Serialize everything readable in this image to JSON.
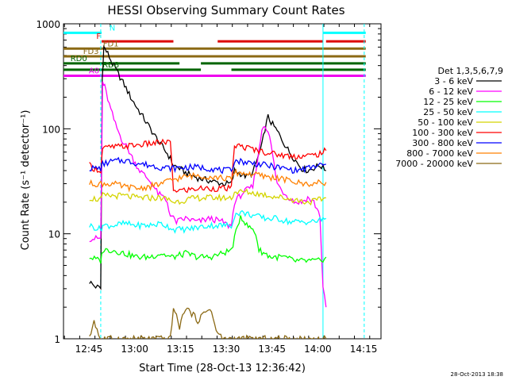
{
  "chart_data": {
    "type": "line",
    "title": "HESSI Observing Summary Count Rates",
    "xlabel": "Start Time (28-Oct-13 12:36:42)",
    "ylabel": "Count Rate (s⁻¹ detector⁻¹)",
    "footer": "28-Oct-2013 18:38",
    "yscale": "log",
    "ylim": [
      1,
      1000
    ],
    "xlim_minutes": [
      0,
      104
    ],
    "x_tick_labels": [
      {
        "m": 8.3,
        "label": "12:45"
      },
      {
        "m": 23.3,
        "label": "13:00"
      },
      {
        "m": 38.3,
        "label": "13:15"
      },
      {
        "m": 53.3,
        "label": "13:30"
      },
      {
        "m": 68.3,
        "label": "13:45"
      },
      {
        "m": 83.3,
        "label": "14:00"
      },
      {
        "m": 98.3,
        "label": "14:15"
      }
    ],
    "y_tick_labels": [
      {
        "v": 1,
        "label": "1"
      },
      {
        "v": 10,
        "label": "10"
      },
      {
        "v": 100,
        "label": "100"
      },
      {
        "v": 1000,
        "label": "1000"
      }
    ],
    "legend_title": "Det 1,3,5,6,7,9",
    "legend_position": "right",
    "series": [
      {
        "name": "3 - 6 keV",
        "color": "#000000",
        "values": [
          [
            8.5,
            3.5
          ],
          [
            10,
            3.2
          ],
          [
            12.2,
            3.0
          ],
          [
            12.7,
            300
          ],
          [
            13.2,
            600
          ],
          [
            14.5,
            520
          ],
          [
            16,
            420
          ],
          [
            18,
            330
          ],
          [
            20,
            260
          ],
          [
            22,
            200
          ],
          [
            24,
            160
          ],
          [
            26,
            130
          ],
          [
            28,
            105
          ],
          [
            30,
            85
          ],
          [
            32,
            70
          ],
          [
            34,
            58
          ],
          [
            35,
            52
          ],
          [
            36,
            45
          ],
          [
            38,
            42
          ],
          [
            40,
            38
          ],
          [
            44,
            34
          ],
          [
            48,
            32
          ],
          [
            52,
            30
          ],
          [
            55,
            30
          ],
          [
            56,
            40
          ],
          [
            60,
            35
          ],
          [
            62,
            38
          ],
          [
            65,
            70
          ],
          [
            66,
            100
          ],
          [
            67,
            130
          ],
          [
            68,
            115
          ],
          [
            70,
            95
          ],
          [
            72,
            75
          ],
          [
            74,
            60
          ],
          [
            76,
            50
          ],
          [
            78,
            42
          ],
          [
            80,
            40
          ],
          [
            84,
            45
          ],
          [
            86,
            40
          ]
        ]
      },
      {
        "name": "6 - 12 keV",
        "color": "#ff00ff",
        "values": [
          [
            8.5,
            9
          ],
          [
            12.2,
            9
          ],
          [
            12.8,
            280
          ],
          [
            13.5,
            250
          ],
          [
            15,
            170
          ],
          [
            17,
            110
          ],
          [
            19,
            80
          ],
          [
            21,
            65
          ],
          [
            23,
            50
          ],
          [
            25,
            40
          ],
          [
            27,
            35
          ],
          [
            29,
            30
          ],
          [
            31,
            24
          ],
          [
            33,
            22
          ],
          [
            34,
            20
          ],
          [
            35,
            15
          ],
          [
            37,
            13
          ],
          [
            40,
            14
          ],
          [
            44,
            13
          ],
          [
            48,
            14
          ],
          [
            52,
            13
          ],
          [
            54,
            12
          ],
          [
            55,
            12
          ],
          [
            56,
            20
          ],
          [
            59,
            25
          ],
          [
            62,
            28
          ],
          [
            64,
            60
          ],
          [
            65,
            100
          ],
          [
            66,
            110
          ],
          [
            67,
            95
          ],
          [
            68,
            70
          ],
          [
            69,
            45
          ],
          [
            70,
            30
          ],
          [
            72,
            25
          ],
          [
            74,
            22
          ],
          [
            76,
            20
          ],
          [
            78,
            20
          ],
          [
            80,
            22
          ],
          [
            82,
            20
          ],
          [
            84,
            15
          ],
          [
            85,
            3
          ],
          [
            86,
            2
          ]
        ]
      },
      {
        "name": "12 - 25 keV",
        "color": "#00ff00",
        "values": [
          [
            8.5,
            6
          ],
          [
            12.2,
            5.5
          ],
          [
            12.8,
            7
          ],
          [
            16,
            7
          ],
          [
            20,
            6.5
          ],
          [
            24,
            6
          ],
          [
            28,
            6
          ],
          [
            32,
            6.5
          ],
          [
            35,
            6
          ],
          [
            36,
            6
          ],
          [
            40,
            6.5
          ],
          [
            44,
            6
          ],
          [
            48,
            6
          ],
          [
            52,
            6.5
          ],
          [
            55,
            7
          ],
          [
            56,
            9
          ],
          [
            58,
            15
          ],
          [
            60,
            12
          ],
          [
            62,
            11
          ],
          [
            63,
            10
          ],
          [
            64,
            7
          ],
          [
            68,
            6
          ],
          [
            72,
            6
          ],
          [
            76,
            5.5
          ],
          [
            80,
            5.5
          ],
          [
            84,
            5.5
          ],
          [
            86,
            6
          ]
        ]
      },
      {
        "name": "25 - 50 keV",
        "color": "#00ffff",
        "values": [
          [
            8.5,
            12
          ],
          [
            12.2,
            11
          ],
          [
            12.8,
            12
          ],
          [
            16,
            12
          ],
          [
            20,
            12.5
          ],
          [
            24,
            12
          ],
          [
            28,
            12
          ],
          [
            32,
            12.5
          ],
          [
            35,
            11.5
          ],
          [
            36,
            11
          ],
          [
            40,
            11
          ],
          [
            44,
            11.5
          ],
          [
            48,
            12
          ],
          [
            52,
            12
          ],
          [
            55,
            12
          ],
          [
            56,
            15
          ],
          [
            58,
            16
          ],
          [
            62,
            15
          ],
          [
            66,
            14
          ],
          [
            70,
            14
          ],
          [
            74,
            13
          ],
          [
            78,
            13
          ],
          [
            82,
            13
          ],
          [
            86,
            14
          ]
        ]
      },
      {
        "name": "50 - 100 keV",
        "color": "#d4d400",
        "values": [
          [
            8.5,
            22
          ],
          [
            12.2,
            21
          ],
          [
            12.8,
            23
          ],
          [
            16,
            23
          ],
          [
            20,
            23
          ],
          [
            24,
            22
          ],
          [
            28,
            22
          ],
          [
            32,
            22
          ],
          [
            35,
            21
          ],
          [
            36,
            20
          ],
          [
            40,
            21
          ],
          [
            44,
            22
          ],
          [
            48,
            22
          ],
          [
            52,
            22
          ],
          [
            55,
            22
          ],
          [
            56,
            25
          ],
          [
            60,
            25
          ],
          [
            64,
            24
          ],
          [
            68,
            23
          ],
          [
            72,
            22
          ],
          [
            76,
            21
          ],
          [
            80,
            20
          ],
          [
            84,
            21
          ],
          [
            86,
            22
          ]
        ]
      },
      {
        "name": "100 - 300 keV",
        "color": "#ff0000",
        "values": [
          [
            8.5,
            45
          ],
          [
            10,
            42
          ],
          [
            12.2,
            40
          ],
          [
            12.8,
            65
          ],
          [
            16,
            67
          ],
          [
            20,
            68
          ],
          [
            24,
            70
          ],
          [
            28,
            72
          ],
          [
            32,
            74
          ],
          [
            35,
            75
          ],
          [
            36,
            26
          ],
          [
            40,
            26
          ],
          [
            44,
            27
          ],
          [
            48,
            27
          ],
          [
            52,
            27
          ],
          [
            55,
            27
          ],
          [
            56,
            70
          ],
          [
            58,
            68
          ],
          [
            62,
            64
          ],
          [
            66,
            60
          ],
          [
            70,
            57
          ],
          [
            74,
            55
          ],
          [
            78,
            55
          ],
          [
            82,
            56
          ],
          [
            84,
            58
          ],
          [
            86,
            62
          ]
        ]
      },
      {
        "name": "300 - 800 keV",
        "color": "#0000ff",
        "values": [
          [
            8.5,
            42
          ],
          [
            12.2,
            42
          ],
          [
            12.8,
            46
          ],
          [
            16,
            49
          ],
          [
            20,
            50
          ],
          [
            24,
            47
          ],
          [
            28,
            45
          ],
          [
            32,
            43
          ],
          [
            36,
            42
          ],
          [
            40,
            43
          ],
          [
            44,
            43
          ],
          [
            48,
            42
          ],
          [
            52,
            40
          ],
          [
            54,
            40
          ],
          [
            55,
            40
          ],
          [
            56,
            50
          ],
          [
            60,
            48
          ],
          [
            64,
            46
          ],
          [
            68,
            44
          ],
          [
            72,
            42
          ],
          [
            76,
            40
          ],
          [
            80,
            42
          ],
          [
            84,
            45
          ],
          [
            86,
            46
          ]
        ]
      },
      {
        "name": "800 - 7000 keV",
        "color": "#ff8000",
        "values": [
          [
            8.5,
            30
          ],
          [
            12.2,
            30
          ],
          [
            12.8,
            30
          ],
          [
            16,
            30
          ],
          [
            20,
            28
          ],
          [
            24,
            27
          ],
          [
            28,
            28
          ],
          [
            32,
            30
          ],
          [
            36,
            33
          ],
          [
            40,
            35
          ],
          [
            44,
            36
          ],
          [
            48,
            35
          ],
          [
            52,
            34
          ],
          [
            55,
            33
          ],
          [
            56,
            38
          ],
          [
            58,
            38
          ],
          [
            62,
            37
          ],
          [
            66,
            35
          ],
          [
            70,
            34
          ],
          [
            74,
            32
          ],
          [
            78,
            30
          ],
          [
            82,
            30
          ],
          [
            86,
            31
          ]
        ]
      },
      {
        "name": "7000 - 20000 keV",
        "color": "#8b6914",
        "values": [
          [
            8.5,
            1
          ],
          [
            10,
            1.5
          ],
          [
            12,
            1
          ],
          [
            35,
            1
          ],
          [
            36,
            2
          ],
          [
            38,
            1.3
          ],
          [
            40,
            2
          ],
          [
            44,
            1.5
          ],
          [
            48,
            2
          ],
          [
            50,
            1.2
          ],
          [
            52,
            1
          ],
          [
            86,
            1
          ]
        ]
      }
    ],
    "attenuator_bars": [
      {
        "label": "F",
        "color": "#dd0000",
        "label_m": 11.5,
        "level": 680,
        "segments": [
          [
            12.5,
            36
          ],
          [
            50.5,
            85
          ],
          [
            86,
            99
          ]
        ]
      },
      {
        "label": "FD1",
        "color": "#8b6914",
        "label_m": 15.5,
        "level": 580,
        "segments": [
          [
            0,
            99
          ]
        ]
      },
      {
        "label": "FD3",
        "color": "#8b6914",
        "label_m": 9,
        "level": 490,
        "segments": [
          [
            0,
            99
          ]
        ]
      },
      {
        "label": "RD0",
        "color": "#006400",
        "label_m": 5,
        "level": 420,
        "segments": [
          [
            0,
            38
          ],
          [
            45,
            99
          ]
        ]
      },
      {
        "label": "RD8",
        "color": "#006400",
        "label_m": 15.5,
        "level": 365,
        "segments": [
          [
            0,
            45
          ],
          [
            55,
            99
          ]
        ]
      },
      {
        "label": "A0",
        "color": "#ee00ee",
        "label_m": 10,
        "level": 320,
        "segments": [
          [
            0,
            99
          ]
        ]
      },
      {
        "label": "N",
        "color": "#00ffff",
        "label_m": 16,
        "level": 820,
        "segments": [
          [
            0,
            12.5
          ],
          [
            85,
            99
          ]
        ]
      }
    ],
    "vertical_markers": [
      {
        "m": 12.2,
        "color": "#00ffff",
        "style": "dashed"
      },
      {
        "m": 85,
        "color": "#00ffff",
        "style": "solid"
      },
      {
        "m": 98.5,
        "color": "#00ffff",
        "style": "dashed"
      }
    ]
  }
}
